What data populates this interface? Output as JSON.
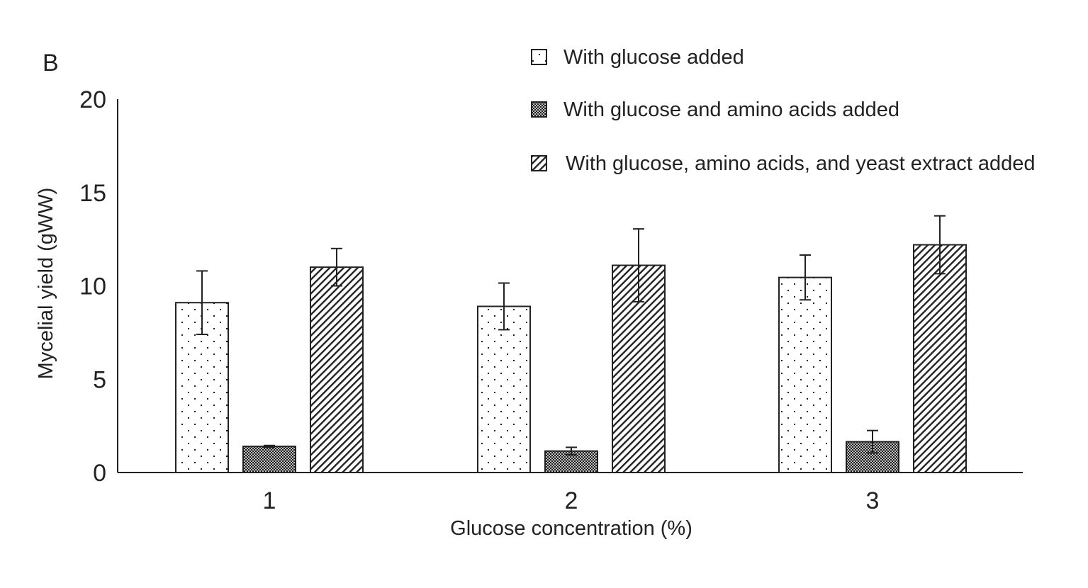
{
  "chart_data": {
    "type": "bar",
    "panel_label": "B",
    "xlabel": "Glucose concentration (%)",
    "ylabel": "Mycelial yield (gWW)",
    "ylim": [
      0,
      20
    ],
    "yticks": [
      0,
      5,
      10,
      15,
      20
    ],
    "categories": [
      "1",
      "2",
      "3"
    ],
    "grid": false,
    "legend_position": "top-right",
    "series": [
      {
        "name": "With glucose added",
        "pattern": "dots",
        "values": [
          9.1,
          8.9,
          10.45
        ],
        "errors": [
          1.7,
          1.25,
          1.2
        ]
      },
      {
        "name": "With glucose and amino acids added",
        "pattern": "crosshatch",
        "values": [
          1.4,
          1.15,
          1.65
        ],
        "errors": [
          0.05,
          0.2,
          0.6
        ]
      },
      {
        "name": "With glucose, amino acids, and yeast extract added",
        "pattern": "diagonal",
        "values": [
          11.0,
          11.1,
          12.2
        ],
        "errors": [
          1.0,
          1.95,
          1.55
        ]
      }
    ]
  }
}
